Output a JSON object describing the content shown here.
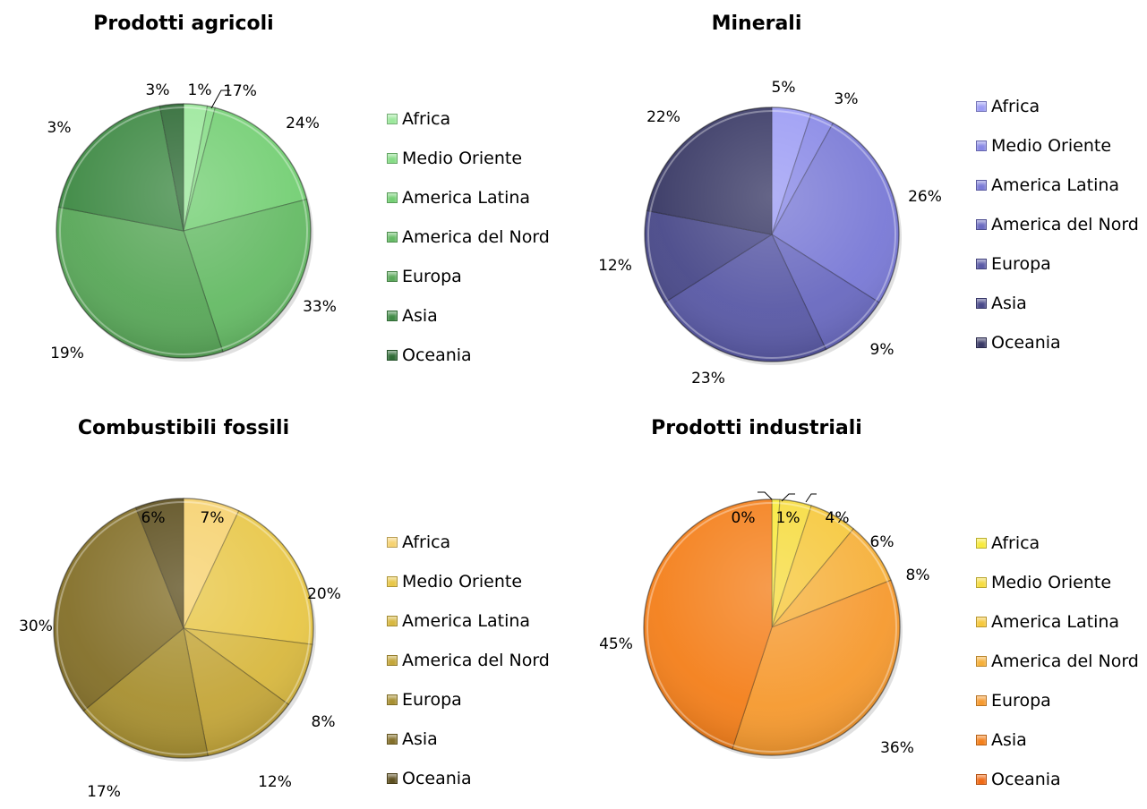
{
  "chart_data": [
    {
      "type": "pie",
      "title": "Prodotti agricoli",
      "categories": [
        "Africa",
        "Medio Oriente",
        "America Latina",
        "America del Nord",
        "Europa",
        "Asia",
        "Oceania"
      ],
      "values": [
        3,
        1,
        17,
        24,
        33,
        19,
        3
      ],
      "labels": [
        "3%",
        "1%",
        "17%",
        "24%",
        "33%",
        "19%",
        "3%"
      ],
      "colors": [
        "#9ce89c",
        "#86dc86",
        "#74cf74",
        "#66bb66",
        "#5aa85a",
        "#3f8a45",
        "#2f6b36"
      ],
      "legend": "right"
    },
    {
      "type": "pie",
      "title": "Minerali",
      "categories": [
        "Africa",
        "Medio Oriente",
        "America Latina",
        "America del Nord",
        "Europa",
        "Asia",
        "Oceania"
      ],
      "values": [
        5,
        3,
        26,
        9,
        23,
        12,
        22
      ],
      "labels": [
        "5%",
        "3%",
        "26%",
        "9%",
        "23%",
        "12%",
        "22%"
      ],
      "colors": [
        "#9c9cf4",
        "#8888e6",
        "#7a7ad6",
        "#6a6ac0",
        "#5a5aa6",
        "#4a4a8a",
        "#3a3a66"
      ],
      "legend": "right"
    },
    {
      "type": "pie",
      "title": "Combustibili fossili",
      "categories": [
        "Africa",
        "Medio Oriente",
        "America Latina",
        "America del Nord",
        "Europa",
        "Asia",
        "Oceania"
      ],
      "values": [
        7,
        20,
        8,
        12,
        17,
        30,
        6
      ],
      "labels": [
        "7%",
        "20%",
        "8%",
        "12%",
        "17%",
        "30%",
        "6%"
      ],
      "colors": [
        "#f6d270",
        "#e8c748",
        "#d8b840",
        "#c4a63a",
        "#a89032",
        "#84702a",
        "#5e5020"
      ],
      "legend": "right"
    },
    {
      "type": "pie",
      "title": "Prodotti industriali",
      "categories": [
        "Africa",
        "Medio Oriente",
        "America Latina",
        "America del Nord",
        "Europa",
        "Asia",
        "Oceania"
      ],
      "values": [
        1,
        4,
        6,
        8,
        36,
        45,
        0
      ],
      "labels": [
        "1%",
        "4%",
        "6%",
        "8%",
        "36%",
        "45%",
        "0%"
      ],
      "colors": [
        "#f8ea3c",
        "#f6dc40",
        "#f6c83c",
        "#f6b03a",
        "#f69a30",
        "#f4801c",
        "#f06a16"
      ],
      "legend": "right"
    }
  ]
}
